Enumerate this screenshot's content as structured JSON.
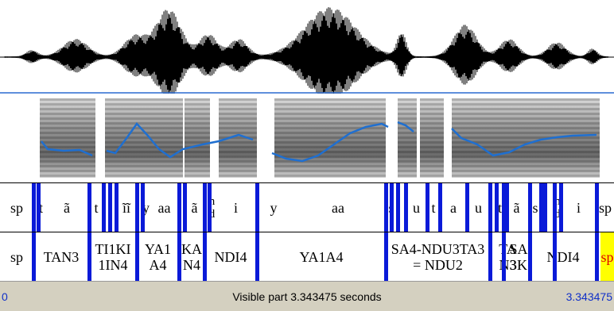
{
  "colors": {
    "boundary": "#0a1ad8",
    "pitch": "#1f6fd0",
    "highlight": "#ffff00",
    "footer_bg": "#d4d0c0",
    "footer_blue": "#1030c8"
  },
  "tier1": {
    "boundaries": [
      42,
      48,
      112,
      130,
      138,
      146,
      172,
      179,
      225,
      232,
      257,
      263,
      323,
      485,
      492,
      500,
      510,
      537,
      553,
      587,
      616,
      624,
      633,
      637,
      666,
      680,
      685,
      697,
      705,
      750
    ],
    "labels": [
      {
        "x0": 0,
        "x1": 42,
        "text": "sp"
      },
      {
        "x0": 47,
        "x1": 56,
        "text": "t"
      },
      {
        "x0": 56,
        "x1": 112,
        "text": "ã"
      },
      {
        "x0": 112,
        "x1": 130,
        "text": "t"
      },
      {
        "x0": 146,
        "x1": 172,
        "text": "ĩĩ"
      },
      {
        "x0": 179,
        "x1": 188,
        "text": "y"
      },
      {
        "x0": 188,
        "x1": 225,
        "text": "aa"
      },
      {
        "x0": 232,
        "x1": 257,
        "text": "ã"
      },
      {
        "x0": 263,
        "x1": 270,
        "text": "n\nd",
        "small": true
      },
      {
        "x0": 270,
        "x1": 323,
        "text": "i"
      },
      {
        "x0": 323,
        "x1": 365,
        "text": "y"
      },
      {
        "x0": 365,
        "x1": 485,
        "text": "aa"
      },
      {
        "x0": 485,
        "x1": 499,
        "text": "s"
      },
      {
        "x0": 510,
        "x1": 537,
        "text": "u"
      },
      {
        "x0": 537,
        "x1": 553,
        "text": "t"
      },
      {
        "x0": 553,
        "x1": 587,
        "text": "a"
      },
      {
        "x0": 587,
        "x1": 616,
        "text": "u"
      },
      {
        "x0": 624,
        "x1": 633,
        "text": "t"
      },
      {
        "x0": 633,
        "x1": 666,
        "text": "ã"
      },
      {
        "x0": 666,
        "x1": 680,
        "text": "s"
      },
      {
        "x0": 697,
        "x1": 705,
        "text": "n\nd",
        "small": true
      },
      {
        "x0": 705,
        "x1": 750,
        "text": "i"
      },
      {
        "x0": 750,
        "x1": 772,
        "text": "sp"
      }
    ]
  },
  "tier2": {
    "boundaries": [
      42,
      112,
      172,
      225,
      257,
      323,
      485,
      616,
      633,
      666,
      697,
      750
    ],
    "labels": [
      {
        "x0": 0,
        "x1": 42,
        "text": "sp"
      },
      {
        "x0": 42,
        "x1": 112,
        "text": "TAN3"
      },
      {
        "x0": 112,
        "x1": 172,
        "text": "TI1KI\n1IN4"
      },
      {
        "x0": 172,
        "x1": 225,
        "text": "YA1\nA4"
      },
      {
        "x0": 225,
        "x1": 257,
        "text": "KA\nN4"
      },
      {
        "x0": 257,
        "x1": 323,
        "text": "NDI4"
      },
      {
        "x0": 323,
        "x1": 485,
        "text": "YA1A4"
      },
      {
        "x0": 485,
        "x1": 616,
        "text": "SA4-NDU3TA3\n= NDU2"
      },
      {
        "x0": 616,
        "x1": 661,
        "text": "TA\nN3"
      },
      {
        "x0": 633,
        "x1": 671,
        "text": "SA\n3K"
      },
      {
        "x0": 666,
        "x1": 750,
        "text": "NDI4"
      },
      {
        "x0": 755,
        "x1": 772,
        "text": "sp",
        "red": true
      }
    ],
    "highlight": {
      "x0": 755,
      "x1": 772
    }
  },
  "footer": {
    "start": "0",
    "visible_text": "Visible part 3.343475 seconds",
    "end": "3.343475"
  }
}
